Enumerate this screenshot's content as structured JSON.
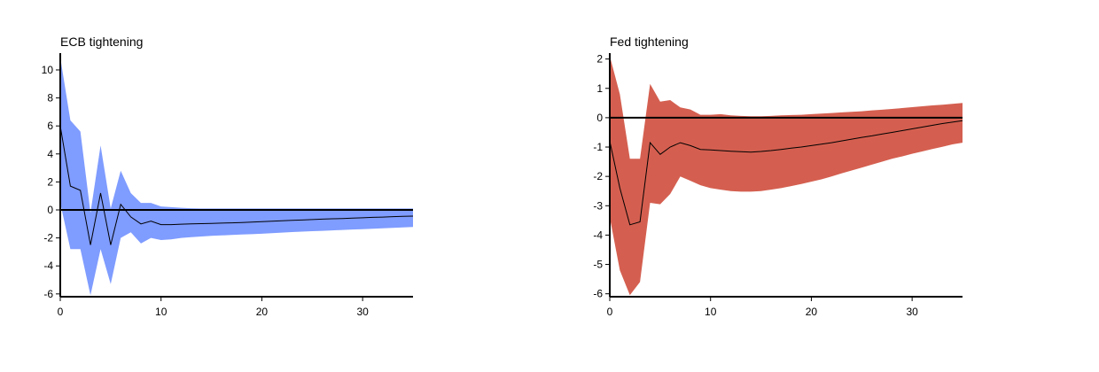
{
  "chart_data": [
    {
      "type": "line",
      "title": "ECB tightening",
      "xlabel": "",
      "ylabel": "",
      "xlim": [
        0,
        35
      ],
      "ylim": [
        -6.2,
        11.2
      ],
      "xticks": [
        0,
        10,
        20,
        30
      ],
      "yticks": [
        -6,
        -4,
        -2,
        0,
        2,
        4,
        6,
        8,
        10
      ],
      "grid": false,
      "legend": "none",
      "band_color": "#7f9cff",
      "line_color": "#000000",
      "zero_line": 0,
      "series": [
        {
          "role": "point estimate",
          "x": [
            0,
            1,
            2,
            3,
            4,
            5,
            6,
            7,
            8,
            9,
            10,
            11,
            12,
            13,
            14,
            15,
            16,
            17,
            18,
            19,
            20,
            21,
            22,
            23,
            24,
            25,
            26,
            27,
            28,
            29,
            30,
            31,
            32,
            33,
            34,
            35
          ],
          "y": [
            6.0,
            1.7,
            1.4,
            -2.5,
            1.2,
            -2.5,
            0.4,
            -0.5,
            -1.0,
            -0.8,
            -1.05,
            -1.05,
            -1.02,
            -1.0,
            -0.98,
            -0.96,
            -0.94,
            -0.92,
            -0.9,
            -0.87,
            -0.84,
            -0.8,
            -0.77,
            -0.74,
            -0.72,
            -0.69,
            -0.66,
            -0.63,
            -0.61,
            -0.58,
            -0.56,
            -0.53,
            -0.51,
            -0.48,
            -0.46,
            -0.44
          ]
        },
        {
          "role": "upper band",
          "x": [
            0,
            1,
            2,
            3,
            4,
            5,
            6,
            7,
            8,
            9,
            10,
            11,
            12,
            13,
            14,
            15,
            16,
            17,
            18,
            19,
            20,
            21,
            22,
            23,
            24,
            25,
            26,
            27,
            28,
            29,
            30,
            31,
            32,
            33,
            34,
            35
          ],
          "y": [
            10.9,
            6.4,
            5.6,
            -0.2,
            4.6,
            0.1,
            2.8,
            1.2,
            0.5,
            0.5,
            0.25,
            0.2,
            0.15,
            0.12,
            0.1,
            0.1,
            0.1,
            0.1,
            0.1,
            0.1,
            0.1,
            0.1,
            0.1,
            0.1,
            0.1,
            0.1,
            0.1,
            0.1,
            0.1,
            0.1,
            0.1,
            0.1,
            0.1,
            0.1,
            0.1,
            0.1
          ]
        },
        {
          "role": "lower band",
          "x": [
            0,
            1,
            2,
            3,
            4,
            5,
            6,
            7,
            8,
            9,
            10,
            11,
            12,
            13,
            14,
            15,
            16,
            17,
            18,
            19,
            20,
            21,
            22,
            23,
            24,
            25,
            26,
            27,
            28,
            29,
            30,
            31,
            32,
            33,
            34,
            35
          ],
          "y": [
            0.5,
            -2.8,
            -2.8,
            -6.1,
            -2.8,
            -5.3,
            -2.0,
            -1.6,
            -2.4,
            -2.0,
            -2.15,
            -2.1,
            -2.0,
            -1.95,
            -1.9,
            -1.85,
            -1.82,
            -1.79,
            -1.76,
            -1.73,
            -1.7,
            -1.66,
            -1.62,
            -1.58,
            -1.55,
            -1.52,
            -1.49,
            -1.46,
            -1.43,
            -1.4,
            -1.37,
            -1.34,
            -1.31,
            -1.28,
            -1.25,
            -1.22
          ]
        }
      ]
    },
    {
      "type": "line",
      "title": "Fed tightening",
      "xlabel": "",
      "ylabel": "",
      "xlim": [
        0,
        35
      ],
      "ylim": [
        -6.1,
        2.2
      ],
      "xticks": [
        0,
        10,
        20,
        30
      ],
      "yticks": [
        -6,
        -5,
        -4,
        -3,
        -2,
        -1,
        0,
        1,
        2
      ],
      "grid": false,
      "legend": "none",
      "band_color": "#d45f50",
      "line_color": "#000000",
      "zero_line": 0,
      "series": [
        {
          "role": "point estimate",
          "x": [
            0,
            1,
            2,
            3,
            4,
            5,
            6,
            7,
            8,
            9,
            10,
            11,
            12,
            13,
            14,
            15,
            16,
            17,
            18,
            19,
            20,
            21,
            22,
            23,
            24,
            25,
            26,
            27,
            28,
            29,
            30,
            31,
            32,
            33,
            34,
            35
          ],
          "y": [
            -0.8,
            -2.4,
            -3.65,
            -3.55,
            -0.85,
            -1.25,
            -1.0,
            -0.85,
            -0.95,
            -1.08,
            -1.1,
            -1.12,
            -1.14,
            -1.16,
            -1.17,
            -1.15,
            -1.12,
            -1.08,
            -1.04,
            -1.0,
            -0.95,
            -0.9,
            -0.85,
            -0.79,
            -0.73,
            -0.67,
            -0.62,
            -0.56,
            -0.5,
            -0.44,
            -0.38,
            -0.32,
            -0.26,
            -0.2,
            -0.15,
            -0.1
          ]
        },
        {
          "role": "upper band",
          "x": [
            0,
            1,
            2,
            3,
            4,
            5,
            6,
            7,
            8,
            9,
            10,
            11,
            12,
            13,
            14,
            15,
            16,
            17,
            18,
            19,
            20,
            21,
            22,
            23,
            24,
            25,
            26,
            27,
            28,
            29,
            30,
            31,
            32,
            33,
            34,
            35
          ],
          "y": [
            2.1,
            0.8,
            -1.4,
            -1.4,
            1.15,
            0.55,
            0.6,
            0.35,
            0.28,
            0.1,
            0.1,
            0.12,
            0.08,
            0.06,
            0.05,
            0.05,
            0.06,
            0.08,
            0.09,
            0.1,
            0.12,
            0.14,
            0.16,
            0.18,
            0.2,
            0.22,
            0.25,
            0.27,
            0.3,
            0.33,
            0.36,
            0.39,
            0.42,
            0.44,
            0.47,
            0.5
          ]
        },
        {
          "role": "lower band",
          "x": [
            0,
            1,
            2,
            3,
            4,
            5,
            6,
            7,
            8,
            9,
            10,
            11,
            12,
            13,
            14,
            15,
            16,
            17,
            18,
            19,
            20,
            21,
            22,
            23,
            24,
            25,
            26,
            27,
            28,
            29,
            30,
            31,
            32,
            33,
            34,
            35
          ],
          "y": [
            -3.4,
            -5.2,
            -6.05,
            -5.6,
            -2.9,
            -2.95,
            -2.6,
            -2.0,
            -2.15,
            -2.3,
            -2.4,
            -2.45,
            -2.5,
            -2.52,
            -2.52,
            -2.5,
            -2.45,
            -2.4,
            -2.33,
            -2.26,
            -2.18,
            -2.1,
            -2.0,
            -1.9,
            -1.8,
            -1.7,
            -1.6,
            -1.5,
            -1.4,
            -1.32,
            -1.23,
            -1.15,
            -1.07,
            -0.99,
            -0.91,
            -0.85
          ]
        }
      ]
    }
  ]
}
